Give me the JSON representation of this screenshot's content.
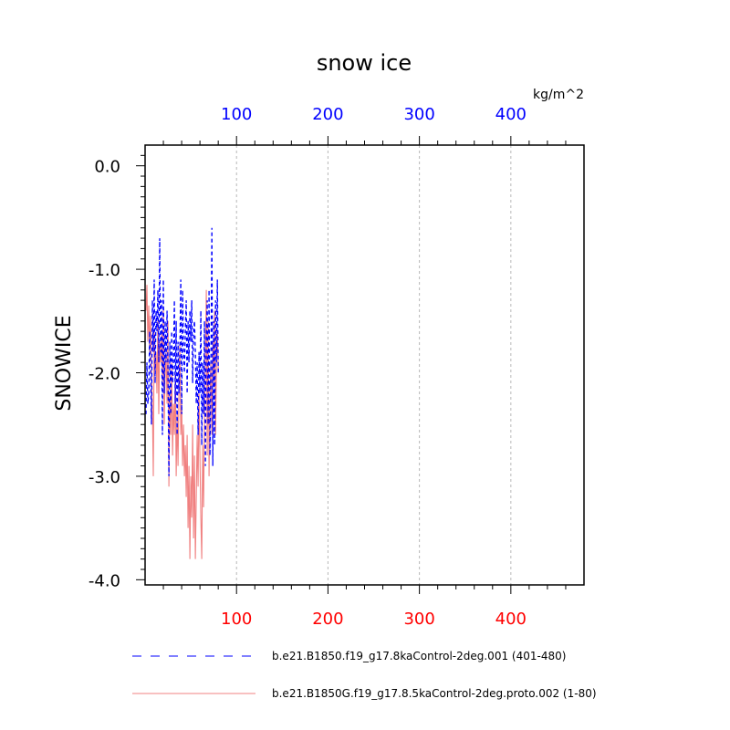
{
  "chart_data": {
    "type": "line",
    "title": "snow ice",
    "units_label": "kg/m^2",
    "ylabel": "SNOWICE",
    "xlabel": "",
    "xlim": [
      0,
      480
    ],
    "ylim": [
      -4.05,
      0.2
    ],
    "top_x_ticks": [
      {
        "value": 100,
        "label": "100"
      },
      {
        "value": 200,
        "label": "200"
      },
      {
        "value": 300,
        "label": "300"
      },
      {
        "value": 400,
        "label": "400"
      }
    ],
    "bottom_x_ticks": [
      {
        "value": 100,
        "label": "100"
      },
      {
        "value": 200,
        "label": "200"
      },
      {
        "value": 300,
        "label": "300"
      },
      {
        "value": 400,
        "label": "400"
      }
    ],
    "y_ticks": [
      {
        "value": 0.0,
        "label": "0.0"
      },
      {
        "value": -1.0,
        "label": "-1.0"
      },
      {
        "value": -2.0,
        "label": "-2.0"
      },
      {
        "value": -3.0,
        "label": "-3.0"
      },
      {
        "value": -4.0,
        "label": "-4.0"
      }
    ],
    "top_axis_color": "#0000ff",
    "bottom_axis_color": "#ff0000",
    "grid": "vertical dotted at major x ticks",
    "legend_position": "bottom",
    "series": [
      {
        "name": "b.e21.B1850.f19_g17.8kaControl-2deg.001 (401-480)",
        "color": "#0000ff",
        "style": "dashed",
        "x": [
          1,
          2,
          3,
          4,
          5,
          6,
          7,
          8,
          9,
          10,
          11,
          12,
          13,
          14,
          15,
          16,
          17,
          18,
          19,
          20,
          21,
          22,
          23,
          24,
          25,
          26,
          27,
          28,
          29,
          30,
          31,
          32,
          33,
          34,
          35,
          36,
          37,
          38,
          39,
          40,
          41,
          42,
          43,
          44,
          45,
          46,
          47,
          48,
          49,
          50,
          51,
          52,
          53,
          54,
          55,
          56,
          57,
          58,
          59,
          60,
          61,
          62,
          63,
          64,
          65,
          66,
          67,
          68,
          69,
          70,
          71,
          72,
          73,
          74,
          75,
          76,
          77,
          78,
          79,
          80
        ],
        "y": [
          -2.4,
          -1.9,
          -2.3,
          -2.2,
          -1.6,
          -2.0,
          -2.5,
          -1.3,
          -1.8,
          -1.1,
          -2.1,
          -1.4,
          -1.6,
          -1.2,
          -1.9,
          -0.7,
          -1.8,
          -1.3,
          -2.6,
          -1.1,
          -2.2,
          -1.5,
          -1.9,
          -1.4,
          -2.0,
          -3.0,
          -1.7,
          -2.4,
          -1.6,
          -2.1,
          -1.9,
          -1.3,
          -2.3,
          -1.5,
          -2.6,
          -1.7,
          -2.2,
          -1.8,
          -1.1,
          -2.4,
          -1.2,
          -1.8,
          -2.0,
          -1.6,
          -1.3,
          -2.2,
          -1.5,
          -1.9,
          -1.4,
          -1.7,
          -1.3,
          -2.1,
          -1.6,
          -1.5,
          -1.8,
          -2.3,
          -1.9,
          -2.6,
          -1.8,
          -2.2,
          -1.4,
          -2.7,
          -1.9,
          -2.4,
          -1.5,
          -2.9,
          -1.7,
          -1.3,
          -2.5,
          -1.2,
          -2.8,
          -2.0,
          -0.6,
          -2.9,
          -1.5,
          -2.7,
          -1.3,
          -1.9,
          -1.1,
          -2.0
        ]
      },
      {
        "name": "b.e21.B1850G.f19_g17.8.5kaControl-2deg.proto.002 (1-80)",
        "color": "#f08080",
        "style": "solid",
        "x": [
          1,
          2,
          3,
          4,
          5,
          6,
          7,
          8,
          9,
          10,
          11,
          12,
          13,
          14,
          15,
          16,
          17,
          18,
          19,
          20,
          21,
          22,
          23,
          24,
          25,
          26,
          27,
          28,
          29,
          30,
          31,
          32,
          33,
          34,
          35,
          36,
          37,
          38,
          39,
          40,
          41,
          42,
          43,
          44,
          45,
          46,
          47,
          48,
          49,
          50,
          51,
          52,
          53,
          54,
          55,
          56,
          57,
          58,
          59,
          60,
          61,
          62,
          63,
          64,
          65,
          66,
          67,
          68,
          69,
          70,
          71,
          72,
          73,
          74,
          75,
          76,
          77,
          78,
          79,
          80
        ],
        "y": [
          -1.4,
          -1.15,
          -1.7,
          -1.35,
          -1.8,
          -1.45,
          -1.9,
          -2.3,
          -3.0,
          -1.6,
          -2.0,
          -1.8,
          -2.2,
          -1.5,
          -2.4,
          -1.7,
          -1.9,
          -1.6,
          -2.1,
          -1.4,
          -2.5,
          -2.0,
          -1.8,
          -2.3,
          -1.5,
          -3.1,
          -2.2,
          -2.6,
          -1.9,
          -2.8,
          -2.3,
          -2.6,
          -2.0,
          -3.0,
          -2.4,
          -2.9,
          -2.2,
          -1.7,
          -2.6,
          -2.3,
          -2.9,
          -2.5,
          -3.0,
          -2.7,
          -3.2,
          -2.6,
          -3.5,
          -2.9,
          -3.8,
          -3.0,
          -3.4,
          -2.5,
          -3.6,
          -2.8,
          -3.8,
          -3.2,
          -2.6,
          -3.1,
          -2.2,
          -2.8,
          -3.4,
          -3.8,
          -2.7,
          -3.3,
          -2.4,
          -1.9,
          -1.2,
          -2.8,
          -1.5,
          -3.0,
          -2.2,
          -1.9,
          -2.6,
          -1.7,
          -2.1,
          -1.4,
          -2.6,
          -1.9,
          -1.6,
          -2.0
        ]
      }
    ]
  }
}
